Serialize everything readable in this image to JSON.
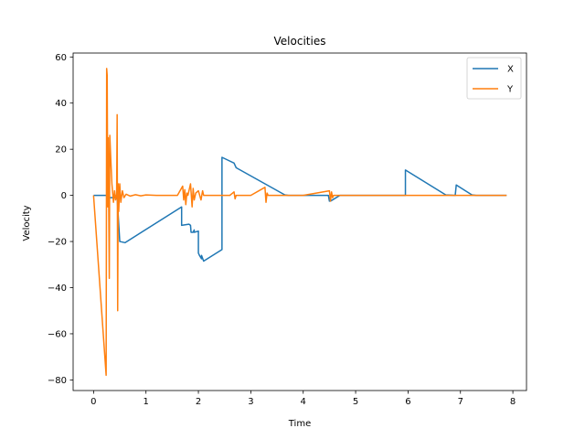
{
  "chart_data": {
    "type": "line",
    "title": "Velocities",
    "xlabel": "Time",
    "ylabel": "Velocity",
    "xlim": [
      -0.39,
      8.26
    ],
    "ylim": [
      -84.6,
      61.7
    ],
    "xticks": [
      0,
      1,
      2,
      3,
      4,
      5,
      6,
      7,
      8
    ],
    "yticks": [
      -80,
      -60,
      -40,
      -20,
      0,
      20,
      40,
      60
    ],
    "xtick_labels": [
      "0",
      "1",
      "2",
      "3",
      "4",
      "5",
      "6",
      "7",
      "8"
    ],
    "ytick_labels": [
      "−80",
      "−60",
      "−40",
      "−20",
      "0",
      "20",
      "40",
      "60"
    ],
    "grid": false,
    "legend": "top-right",
    "series": [
      {
        "name": "X",
        "color": "#1f77b4",
        "x": [
          0.0,
          0.3,
          0.3,
          0.45,
          0.5,
          0.6,
          1.68,
          1.68,
          1.82,
          1.85,
          1.86,
          1.9,
          1.92,
          1.92,
          2.0,
          2.0,
          2.02,
          2.06,
          2.06,
          2.1,
          2.45,
          2.45,
          2.68,
          2.72,
          3.65,
          3.72,
          4.48,
          4.5,
          4.52,
          4.7,
          5.95,
          5.95,
          6.72,
          6.9,
          6.92,
          6.92,
          7.22,
          7.3,
          7.88
        ],
        "y": [
          0.0,
          0.0,
          -1.0,
          -1.0,
          -20.0,
          -20.5,
          -5.0,
          -13.0,
          -12.5,
          -13.0,
          -16.0,
          -16.0,
          -15.0,
          -16.0,
          -15.5,
          -25.0,
          -26.0,
          -27.5,
          -26.0,
          -28.5,
          -23.5,
          16.5,
          14.0,
          12.0,
          0.2,
          0.0,
          0.0,
          -2.5,
          -2.5,
          0.0,
          0.0,
          11.0,
          0.2,
          0.0,
          4.5,
          4.5,
          0.2,
          0.0,
          0.0
        ]
      },
      {
        "name": "Y",
        "color": "#ff7f0e",
        "x": [
          0.0,
          0.24,
          0.25,
          0.26,
          0.27,
          0.28,
          0.3,
          0.31,
          0.33,
          0.35,
          0.38,
          0.4,
          0.42,
          0.44,
          0.45,
          0.46,
          0.47,
          0.48,
          0.5,
          0.52,
          0.55,
          0.58,
          0.62,
          0.7,
          0.8,
          0.9,
          1.0,
          1.2,
          1.4,
          1.6,
          1.7,
          1.72,
          1.74,
          1.76,
          1.78,
          1.8,
          1.85,
          1.88,
          1.9,
          1.92,
          1.95,
          2.0,
          2.05,
          2.08,
          2.1,
          2.3,
          2.6,
          2.68,
          2.7,
          2.72,
          3.0,
          3.27,
          3.29,
          3.31,
          3.33,
          3.5,
          4.0,
          4.5,
          4.52,
          4.54,
          4.56,
          4.58,
          5.0,
          5.5,
          5.9,
          6.0,
          6.5,
          7.0,
          7.5,
          7.88
        ],
        "y": [
          0.0,
          -78.0,
          55.0,
          52.0,
          -5.0,
          25.0,
          -36.0,
          26.0,
          15.0,
          5.0,
          -3.0,
          2.0,
          -2.0,
          0.5,
          35.0,
          -50.0,
          5.0,
          -7.0,
          5.0,
          -3.0,
          2.0,
          -1.0,
          0.5,
          -0.3,
          0.3,
          -0.2,
          0.2,
          0.0,
          0.0,
          0.0,
          4.0,
          -2.0,
          2.5,
          -4.0,
          1.0,
          0.0,
          5.0,
          -5.0,
          3.0,
          -2.0,
          1.0,
          2.0,
          -2.0,
          2.0,
          0.0,
          0.0,
          0.0,
          1.5,
          -1.5,
          0.0,
          0.0,
          3.5,
          -3.0,
          1.0,
          0.0,
          0.0,
          0.0,
          2.0,
          -2.5,
          1.5,
          -1.0,
          0.0,
          0.0,
          0.0,
          0.0,
          0.0,
          0.0,
          0.0,
          0.0,
          0.0
        ]
      }
    ]
  }
}
